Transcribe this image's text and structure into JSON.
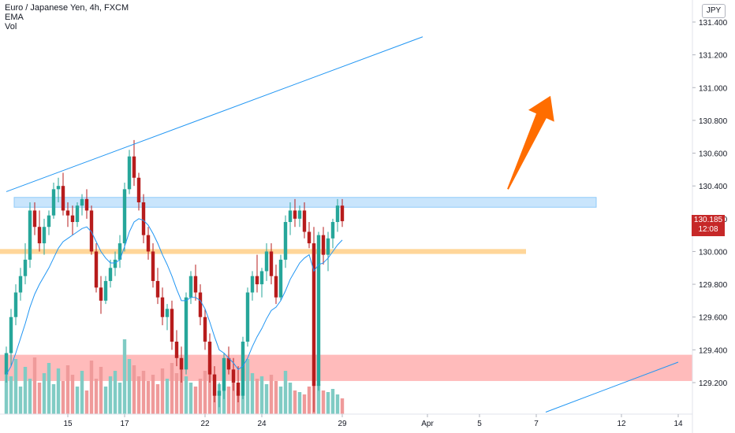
{
  "legend": {
    "title": "Euro / Japanese Yen, 4h, FXCM",
    "ema": "EMA",
    "vol": "Vol"
  },
  "currency": "JPY",
  "last_price": {
    "value": "130.185",
    "countdown": "12:08"
  },
  "colors": {
    "up": "#26a69a",
    "down": "#b71c1c",
    "ema": "#2196f3",
    "vol_up": "#80cbc4",
    "vol_down": "#ef9a9a",
    "blue_zone": "#bbdefb",
    "orange_zone": "#ffcc80",
    "red_zone": "#ff9e9e",
    "arrow": "#ff6d00",
    "trendline": "#2196f3",
    "price_tag": "#c62828"
  },
  "chart_data": {
    "type": "candlestick",
    "title": "Euro / Japanese Yen, 4h, FXCM",
    "ylim": [
      129.05,
      131.55
    ],
    "y_ticks": [
      "131.400",
      "131.200",
      "131.000",
      "130.800",
      "130.600",
      "130.400",
      "130.200",
      "130.000",
      "129.800",
      "129.600",
      "129.400",
      "129.200"
    ],
    "x_ticks": [
      "15",
      "17",
      "22",
      "24",
      "29",
      "Apr",
      "5",
      "7",
      "12",
      "14"
    ],
    "xlim": [
      -0.5,
      125
    ],
    "x_tick_positions": [
      13,
      25,
      42,
      54,
      71,
      89,
      100,
      112,
      130,
      142
    ],
    "grid": false,
    "candles": [
      [
        129.25,
        129.42,
        129.2,
        129.38
      ],
      [
        129.38,
        129.65,
        129.3,
        129.6
      ],
      [
        129.6,
        129.8,
        129.55,
        129.75
      ],
      [
        129.75,
        129.9,
        129.7,
        129.85
      ],
      [
        129.85,
        130.05,
        129.8,
        129.95
      ],
      [
        129.95,
        130.3,
        129.9,
        130.25
      ],
      [
        130.25,
        130.3,
        130.1,
        130.15
      ],
      [
        130.15,
        130.25,
        130.0,
        130.05
      ],
      [
        130.05,
        130.2,
        129.98,
        130.15
      ],
      [
        130.15,
        130.25,
        130.1,
        130.22
      ],
      [
        130.22,
        130.42,
        130.2,
        130.38
      ],
      [
        130.38,
        130.45,
        130.3,
        130.4
      ],
      [
        130.4,
        130.48,
        130.22,
        130.25
      ],
      [
        130.25,
        130.3,
        130.15,
        130.22
      ],
      [
        130.22,
        130.28,
        130.1,
        130.18
      ],
      [
        130.18,
        130.3,
        130.15,
        130.28
      ],
      [
        130.28,
        130.35,
        130.22,
        130.32
      ],
      [
        130.32,
        130.38,
        130.2,
        130.25
      ],
      [
        130.25,
        130.28,
        129.98,
        130.0
      ],
      [
        130.0,
        130.05,
        129.75,
        129.78
      ],
      [
        129.78,
        129.85,
        129.62,
        129.7
      ],
      [
        129.7,
        129.85,
        129.68,
        129.82
      ],
      [
        129.82,
        129.95,
        129.78,
        129.9
      ],
      [
        129.9,
        130.0,
        129.85,
        129.95
      ],
      [
        129.95,
        130.1,
        129.9,
        130.05
      ],
      [
        130.05,
        130.42,
        130.0,
        130.38
      ],
      [
        130.38,
        130.62,
        130.35,
        130.58
      ],
      [
        130.58,
        130.68,
        130.4,
        130.45
      ],
      [
        130.45,
        130.48,
        130.25,
        130.3
      ],
      [
        130.3,
        130.35,
        130.05,
        130.1
      ],
      [
        130.1,
        130.15,
        129.95,
        130.0
      ],
      [
        130.0,
        130.05,
        129.78,
        129.82
      ],
      [
        129.82,
        129.9,
        129.68,
        129.72
      ],
      [
        129.72,
        129.78,
        129.55,
        129.6
      ],
      [
        129.6,
        129.68,
        129.52,
        129.65
      ],
      [
        129.65,
        129.7,
        129.4,
        129.45
      ],
      [
        129.45,
        129.52,
        129.3,
        129.35
      ],
      [
        129.35,
        129.42,
        129.2,
        129.28
      ],
      [
        129.28,
        129.75,
        129.25,
        129.72
      ],
      [
        129.72,
        129.88,
        129.68,
        129.85
      ],
      [
        129.85,
        129.92,
        129.7,
        129.75
      ],
      [
        129.75,
        129.8,
        129.55,
        129.6
      ],
      [
        129.6,
        129.65,
        129.4,
        129.45
      ],
      [
        129.45,
        129.5,
        129.2,
        129.25
      ],
      [
        129.25,
        129.3,
        129.08,
        129.12
      ],
      [
        129.12,
        129.2,
        129.05,
        129.15
      ],
      [
        129.15,
        129.38,
        129.1,
        129.35
      ],
      [
        129.35,
        129.42,
        129.25,
        129.28
      ],
      [
        129.28,
        129.35,
        129.15,
        129.2
      ],
      [
        129.2,
        129.3,
        129.08,
        129.12
      ],
      [
        129.12,
        129.48,
        129.1,
        129.45
      ],
      [
        129.45,
        129.78,
        129.42,
        129.75
      ],
      [
        129.75,
        129.88,
        129.7,
        129.85
      ],
      [
        129.85,
        129.98,
        129.75,
        129.8
      ],
      [
        129.8,
        129.9,
        129.72,
        129.88
      ],
      [
        129.88,
        130.05,
        129.82,
        130.0
      ],
      [
        130.0,
        130.05,
        129.8,
        129.85
      ],
      [
        129.85,
        129.92,
        129.68,
        129.72
      ],
      [
        129.72,
        129.98,
        129.7,
        129.95
      ],
      [
        129.95,
        130.22,
        129.9,
        130.18
      ],
      [
        130.18,
        130.3,
        130.1,
        130.25
      ],
      [
        130.25,
        130.32,
        130.15,
        130.2
      ],
      [
        130.2,
        130.28,
        130.15,
        130.25
      ],
      [
        130.25,
        130.3,
        130.08,
        130.12
      ],
      [
        130.12,
        130.18,
        130.02,
        130.05
      ],
      [
        130.05,
        130.15,
        129.02,
        129.18
      ],
      [
        129.18,
        130.12,
        129.15,
        130.1
      ],
      [
        130.1,
        130.15,
        129.92,
        129.98
      ],
      [
        129.98,
        130.12,
        129.88,
        130.08
      ],
      [
        130.08,
        130.2,
        130.02,
        130.18
      ],
      [
        130.18,
        130.32,
        130.12,
        130.28
      ],
      [
        130.28,
        130.32,
        130.15,
        130.185
      ]
    ],
    "ema_values": [
      129.25,
      129.3,
      129.38,
      129.47,
      129.56,
      129.66,
      129.74,
      129.8,
      129.85,
      129.9,
      129.96,
      130.02,
      130.06,
      130.08,
      130.1,
      130.12,
      130.14,
      130.15,
      130.12,
      130.06,
      130.0,
      129.96,
      129.93,
      129.93,
      129.95,
      130.03,
      130.12,
      130.18,
      130.2,
      130.19,
      130.16,
      130.11,
      130.05,
      129.98,
      129.92,
      129.85,
      129.77,
      129.7,
      129.7,
      129.72,
      129.72,
      129.7,
      129.65,
      129.57,
      129.48,
      129.4,
      129.38,
      129.35,
      129.32,
      129.28,
      129.3,
      129.35,
      129.42,
      129.48,
      129.53,
      129.59,
      129.64,
      129.66,
      129.7,
      129.76,
      129.83,
      129.88,
      129.93,
      129.96,
      129.98,
      129.88,
      129.92,
      129.93,
      129.96,
      130.0,
      130.04,
      130.07
    ],
    "volumes": [
      0.55,
      0.48,
      0.7,
      0.35,
      0.6,
      0.45,
      0.72,
      0.4,
      0.52,
      0.65,
      0.38,
      0.58,
      0.42,
      0.62,
      0.5,
      0.35,
      0.55,
      0.3,
      0.68,
      0.45,
      0.6,
      0.35,
      0.48,
      0.55,
      0.4,
      0.95,
      0.7,
      0.62,
      0.48,
      0.55,
      0.42,
      0.5,
      0.38,
      0.58,
      0.45,
      0.65,
      0.52,
      0.7,
      0.48,
      0.4,
      0.35,
      0.45,
      0.55,
      0.62,
      0.5,
      0.38,
      0.42,
      0.35,
      0.4,
      0.3,
      0.58,
      0.7,
      0.52,
      0.45,
      0.48,
      0.38,
      0.5,
      0.42,
      0.35,
      0.55,
      0.4,
      0.3,
      0.28,
      0.25,
      0.35,
      0.45,
      0.38,
      0.3,
      0.28,
      0.32,
      0.25,
      0.2
    ],
    "zones": {
      "blue_resistance": {
        "low": 130.27,
        "high": 130.33
      },
      "orange_level": {
        "low": 129.985,
        "high": 130.015
      },
      "red_support": {
        "low": 129.21,
        "high": 129.37
      }
    },
    "trendlines": [
      {
        "from": {
          "x": 0,
          "y": 130.365
        },
        "to": {
          "x": 88,
          "y": 131.31
        }
      },
      {
        "from": {
          "x": 114,
          "y": 129.02
        },
        "to": {
          "x": 142,
          "y": 129.325
        }
      }
    ],
    "arrow": {
      "from": {
        "x": 106,
        "y": 130.38
      },
      "to": {
        "x": 115,
        "y": 130.95
      }
    }
  }
}
